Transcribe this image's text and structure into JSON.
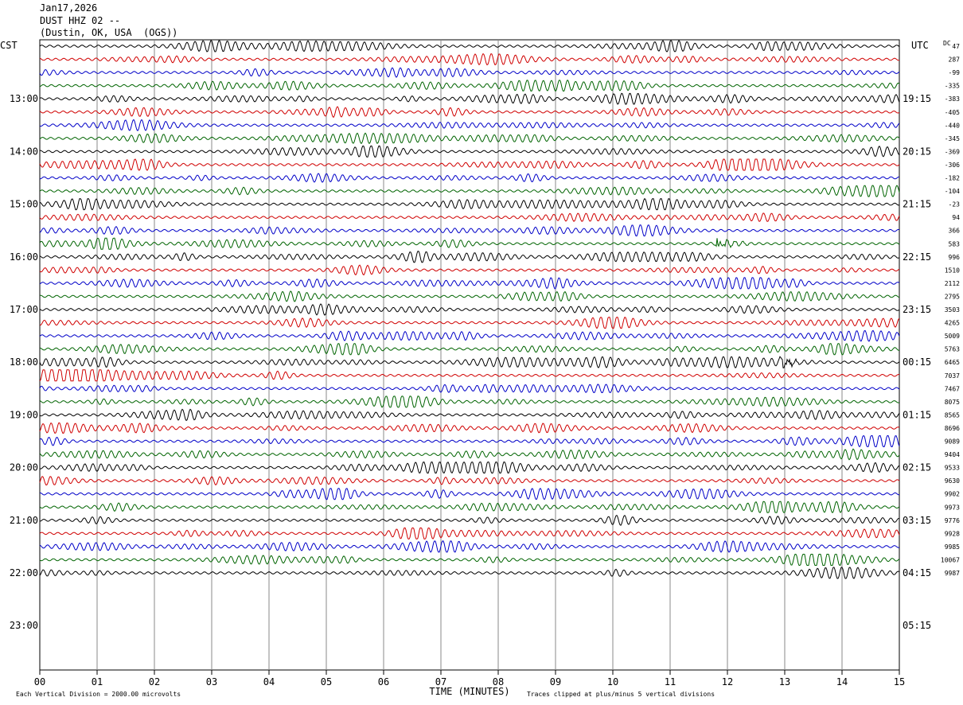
{
  "header": {
    "date": "Jan17,2026",
    "station": "DUST HHZ 02 --",
    "location": "(Dustin, OK, USA  (OGS))"
  },
  "chart_data": {
    "type": "line",
    "title": "DUST HHZ 02 -- Jan17,2026",
    "left_axis_label": "CST",
    "right_axis_label": "UTC",
    "dc_label": "DC",
    "xlabel": "TIME (MINUTES)",
    "xlim": [
      0,
      15
    ],
    "x_ticks": [
      "00",
      "01",
      "02",
      "03",
      "04",
      "05",
      "06",
      "07",
      "08",
      "09",
      "10",
      "11",
      "12",
      "13",
      "14",
      "15"
    ],
    "left_hours": [
      "13:00",
      "14:00",
      "15:00",
      "16:00",
      "17:00",
      "18:00",
      "19:00",
      "20:00",
      "21:00",
      "22:00",
      "23:00"
    ],
    "right_hours": [
      "19:15",
      "20:15",
      "21:15",
      "22:15",
      "23:15",
      "00:15",
      "01:15",
      "02:15",
      "03:15",
      "04:15",
      "05:15"
    ],
    "trace_colors": [
      "#000000",
      "#d00000",
      "#0000c8",
      "#006400"
    ],
    "traces_drawn": 41,
    "dc_offsets": [
      "47",
      "287",
      "-99",
      "-335",
      "-383",
      "-405",
      "-440",
      "-345",
      "-369",
      "-306",
      "-182",
      "-104",
      "-23",
      "94",
      "366",
      "583",
      "996",
      "1510",
      "2112",
      "2795",
      "3503",
      "4265",
      "5009",
      "5763",
      "6465",
      "7037",
      "7467",
      "8075",
      "8565",
      "8696",
      "9089",
      "9404",
      "9533",
      "9630",
      "9902",
      "9973",
      "9776",
      "9928",
      "9985",
      "10067",
      "9987"
    ],
    "events": [
      {
        "trace": 15,
        "minute": 11.8
      },
      {
        "trace": 24,
        "minute": 12.9
      }
    ],
    "footer_left": "Each Vertical Division = 2000.00 microvolts",
    "footer_right": "Traces clipped at plus/minus 5 vertical divisions",
    "grid": true
  }
}
